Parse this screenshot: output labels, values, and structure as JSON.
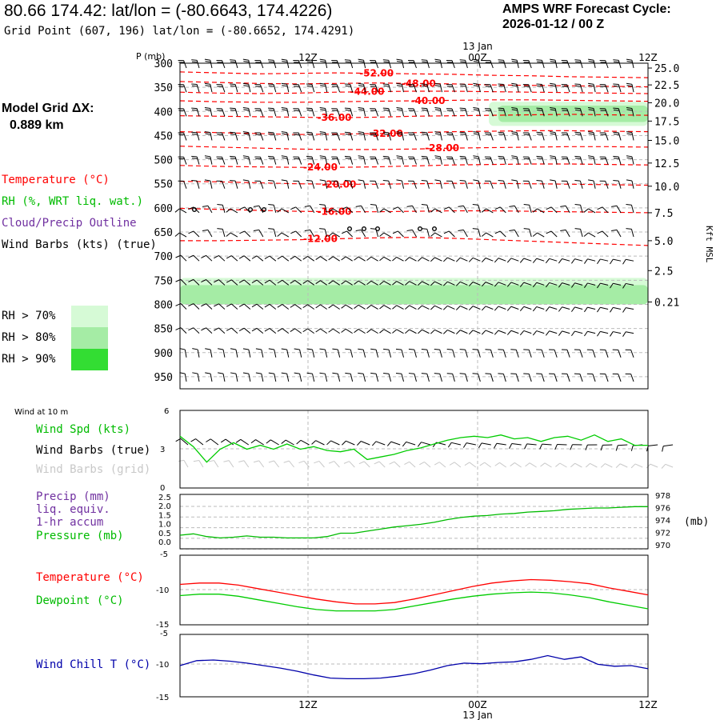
{
  "header": {
    "title": "80.66 174.42:  lat/lon = (-80.6643, 174.4226)",
    "subtitle": "Grid Point (607, 196) lat/lon = (-80.6652, 174.4291)",
    "cycle_line1": "AMPS WRF Forecast Cycle:",
    "cycle_line2": "2026-01-12 / 00  Z"
  },
  "time_axis": {
    "labels": [
      "12Z",
      "00Z",
      "12Z"
    ],
    "date_label": "13 Jan"
  },
  "model_grid": {
    "label": "Model Grid ΔX:",
    "value": "0.889 km"
  },
  "legend": {
    "temperature": "Temperature (°C)",
    "rh": "RH (%, WRT liq. wat.)",
    "cloud": "Cloud/Precip Outline",
    "wind": "Wind Barbs (kts) (true)",
    "rh_levels": [
      "RH > 70%",
      "RH > 80%",
      "RH > 90%"
    ]
  },
  "colors": {
    "temperature": "#ff0000",
    "dewpoint": "#00cc00",
    "pressure": "#00bb00",
    "windchill": "#0000aa",
    "cloud": "#7030a0",
    "rh70": "#d6fad6",
    "rh80": "#a5eca5",
    "rh90": "#33dd33",
    "grid": "#bbbbbb"
  },
  "chart_data": [
    {
      "type": "line",
      "name": "upper-air-cross-section",
      "y_axis_label": "P (mb)",
      "pressure_levels": [
        300,
        350,
        400,
        450,
        500,
        550,
        600,
        650,
        700,
        750,
        800,
        850,
        900,
        950
      ],
      "right_axis_label": "Kft MSL",
      "height_ticks": [
        {
          "label": "25.0",
          "p": 310
        },
        {
          "label": "22.5",
          "p": 345
        },
        {
          "label": "20.0",
          "p": 382
        },
        {
          "label": "17.5",
          "p": 420
        },
        {
          "label": "15.0",
          "p": 460
        },
        {
          "label": "12.5",
          "p": 507
        },
        {
          "label": "10.0",
          "p": 555
        },
        {
          "label": "7.5",
          "p": 610
        },
        {
          "label": "5.0",
          "p": 668
        },
        {
          "label": "2.5",
          "p": 730
        },
        {
          "label": "0.21",
          "p": 795
        }
      ],
      "isotherms": [
        {
          "label": "-52.00",
          "p": [
            318,
            320,
            322,
            321,
            320,
            321,
            322,
            323,
            325,
            326,
            328,
            329,
            330
          ],
          "lx": 0.42
        },
        {
          "label": "-48.00",
          "p": [
            338,
            340,
            342,
            343,
            342,
            341,
            342,
            343,
            345,
            346,
            347,
            348,
            349
          ],
          "lx": 0.51
        },
        {
          "label": "-44.00",
          "p": [
            360,
            362,
            363,
            362,
            360,
            359,
            358,
            358,
            359,
            360,
            361,
            362,
            363
          ],
          "lx": 0.4
        },
        {
          "label": "-40.00",
          "p": [
            378,
            380,
            381,
            381,
            380,
            379,
            378,
            377,
            376,
            376,
            377,
            378,
            379
          ],
          "lx": 0.53
        },
        {
          "label": "-36.00",
          "p": [
            409,
            410,
            411,
            412,
            413,
            412,
            410,
            409,
            408,
            407,
            406,
            407,
            408
          ],
          "lx": 0.33
        },
        {
          "label": "-32.00",
          "p": [
            442,
            444,
            446,
            448,
            447,
            446,
            444,
            442,
            441,
            440,
            440,
            441,
            442
          ],
          "lx": 0.44
        },
        {
          "label": "-28.00",
          "p": [
            472,
            474,
            476,
            478,
            479,
            479,
            478,
            476,
            475,
            474,
            473,
            473,
            474
          ],
          "lx": 0.56
        },
        {
          "label": "-24.00",
          "p": [
            512,
            514,
            515,
            516,
            516,
            515,
            513,
            511,
            510,
            509,
            509,
            510,
            511
          ],
          "lx": 0.3
        },
        {
          "label": "-20.00",
          "p": [
            545,
            546,
            548,
            550,
            551,
            551,
            550,
            549,
            549,
            550,
            551,
            552,
            553
          ],
          "lx": 0.34
        },
        {
          "label": "-16.00",
          "p": [
            601,
            603,
            605,
            607,
            608,
            608,
            607,
            606,
            606,
            607,
            608,
            609,
            610
          ],
          "lx": 0.33
        },
        {
          "label": "-12.00",
          "p": [
            668,
            668,
            667,
            666,
            664,
            662,
            661,
            663,
            666,
            669,
            672,
            675,
            678
          ],
          "lx": 0.3
        }
      ],
      "rh_regions": [
        {
          "level": "rh70",
          "from_x": 0.66,
          "to_x": 1.0,
          "p_top": 380,
          "p_bottom": 430
        },
        {
          "level": "rh80",
          "from_x": 0.68,
          "to_x": 1.0,
          "p_top": 388,
          "p_bottom": 422
        },
        {
          "level": "rh70",
          "from_x": 0.0,
          "to_x": 1.0,
          "p_top": 745,
          "p_bottom": 800
        },
        {
          "level": "rh80",
          "from_x": 0.0,
          "to_x": 1.0,
          "p_top": 760,
          "p_bottom": 800
        }
      ]
    },
    {
      "type": "line",
      "name": "wind-10m",
      "panel_title": "Wind at 10 m",
      "series_labels": [
        "Wind Spd (kts)",
        "Wind Barbs (true)",
        "Wind Barbs (grid)"
      ],
      "y_ticks": [
        "6",
        "3",
        "0"
      ],
      "ylim": [
        0,
        6
      ],
      "wind_speed": [
        4.0,
        3.2,
        2.0,
        3.0,
        3.5,
        3.0,
        3.3,
        3.0,
        3.4,
        3.0,
        3.2,
        2.9,
        2.8,
        3.0,
        2.2,
        2.4,
        2.6,
        2.9,
        3.1,
        3.4,
        3.7,
        3.9,
        4.0,
        3.9,
        4.1,
        3.8,
        3.9,
        3.6,
        3.9,
        4.0,
        3.7,
        4.1,
        3.6,
        3.8,
        3.3,
        3.3
      ]
    },
    {
      "type": "line",
      "name": "precip-pressure",
      "series_labels": [
        "Precip (mm)",
        "liq. equiv.",
        "1-hr accum",
        "Pressure (mb)"
      ],
      "left_ticks": [
        "2.5",
        "2.0",
        "1.5",
        "1.0",
        "0.5",
        "0.0"
      ],
      "right_ticks": [
        "978",
        "976",
        "974",
        "972",
        "970"
      ],
      "right_unit": "(mb)",
      "ylim_right": [
        970,
        978
      ],
      "pressure": [
        972.0,
        972.2,
        971.8,
        971.6,
        971.7,
        971.9,
        971.7,
        971.7,
        971.6,
        971.6,
        971.6,
        971.8,
        972.3,
        972.3,
        972.6,
        972.9,
        973.2,
        973.4,
        973.6,
        973.9,
        974.3,
        974.6,
        974.8,
        974.9,
        975.1,
        975.2,
        975.4,
        975.5,
        975.6,
        975.8,
        975.9,
        976.0,
        976.0,
        976.1,
        976.2,
        976.2
      ]
    },
    {
      "type": "line",
      "name": "temperature-dewpoint",
      "series_labels": [
        "Temperature (°C)",
        "Dewpoint (°C)"
      ],
      "y_ticks": [
        "-5",
        "-10",
        "-15"
      ],
      "ylim": [
        -15,
        -5
      ],
      "temperature": [
        -9.2,
        -9.0,
        -9.0,
        -9.3,
        -9.8,
        -10.3,
        -10.8,
        -11.3,
        -11.7,
        -12.0,
        -12.0,
        -11.8,
        -11.3,
        -10.7,
        -10.1,
        -9.5,
        -9.0,
        -8.7,
        -8.5,
        -8.6,
        -8.8,
        -9.1,
        -9.7,
        -10.2,
        -10.7
      ],
      "dewpoint": [
        -10.8,
        -10.6,
        -10.6,
        -10.9,
        -11.4,
        -11.9,
        -12.4,
        -12.8,
        -13.0,
        -13.0,
        -13.0,
        -12.8,
        -12.3,
        -11.8,
        -11.3,
        -10.9,
        -10.6,
        -10.4,
        -10.3,
        -10.4,
        -10.7,
        -11.1,
        -11.7,
        -12.2,
        -12.7
      ]
    },
    {
      "type": "line",
      "name": "wind-chill",
      "series_labels": [
        "Wind Chill T (°C)"
      ],
      "y_ticks": [
        "-5",
        "-10",
        "-15"
      ],
      "ylim": [
        -15,
        -5
      ],
      "wind_chill": [
        -10.0,
        -9.2,
        -9.1,
        -9.3,
        -9.6,
        -10.0,
        -10.4,
        -10.9,
        -11.5,
        -12.0,
        -12.1,
        -12.1,
        -12.0,
        -11.7,
        -11.3,
        -10.7,
        -10.0,
        -9.6,
        -9.7,
        -9.5,
        -9.4,
        -9.0,
        -8.4,
        -9.0,
        -8.6,
        -9.8,
        -10.1,
        -10.0,
        -10.5
      ]
    }
  ]
}
